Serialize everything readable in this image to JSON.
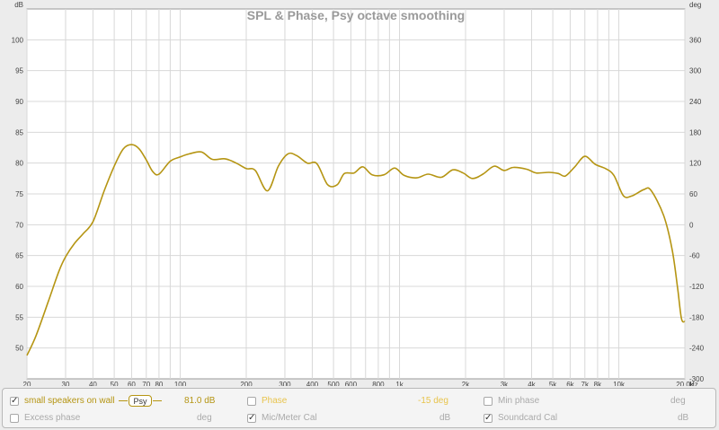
{
  "chart_data": {
    "type": "line",
    "title": "SPL & Phase, Psy octave smoothing",
    "left_unit": "dB",
    "right_unit": "deg",
    "x_unit": "Hz",
    "x_scale": "log",
    "xlim": [
      20,
      20000
    ],
    "ylim": [
      45,
      105
    ],
    "y2lim": [
      -300,
      420
    ],
    "y_ticks": [
      50,
      55,
      60,
      65,
      70,
      75,
      80,
      85,
      90,
      95,
      100
    ],
    "y2_ticks": [
      -300,
      -240,
      -180,
      -120,
      -60,
      0,
      60,
      120,
      180,
      240,
      300,
      360
    ],
    "x_ticks": [
      {
        "v": 20,
        "label": "20"
      },
      {
        "v": 30,
        "label": "30"
      },
      {
        "v": 40,
        "label": "40"
      },
      {
        "v": 50,
        "label": "50"
      },
      {
        "v": 60,
        "label": "60"
      },
      {
        "v": 70,
        "label": "70"
      },
      {
        "v": 80,
        "label": "80"
      },
      {
        "v": 100,
        "label": "100"
      },
      {
        "v": 200,
        "label": "200"
      },
      {
        "v": 300,
        "label": "300"
      },
      {
        "v": 400,
        "label": "400"
      },
      {
        "v": 500,
        "label": "500"
      },
      {
        "v": 600,
        "label": "600"
      },
      {
        "v": 800,
        "label": "800"
      },
      {
        "v": 1000,
        "label": "1k"
      },
      {
        "v": 2000,
        "label": "2k"
      },
      {
        "v": 3000,
        "label": "3k"
      },
      {
        "v": 4000,
        "label": "4k"
      },
      {
        "v": 5000,
        "label": "5k"
      },
      {
        "v": 6000,
        "label": "6k"
      },
      {
        "v": 7000,
        "label": "7k"
      },
      {
        "v": 8000,
        "label": "8k"
      },
      {
        "v": 10000,
        "label": "10k"
      },
      {
        "v": 20000,
        "label": "20.0k"
      }
    ],
    "x_minor": [
      90,
      700,
      900,
      9000
    ],
    "series": [
      {
        "name": "small speakers on wall",
        "color": "#b59513",
        "points": [
          [
            20,
            48.8
          ],
          [
            22,
            52
          ],
          [
            25,
            57.5
          ],
          [
            28,
            62.5
          ],
          [
            30,
            64.8
          ],
          [
            33,
            67
          ],
          [
            36,
            68.5
          ],
          [
            40,
            70.5
          ],
          [
            45,
            75.5
          ],
          [
            50,
            79.5
          ],
          [
            55,
            82.3
          ],
          [
            60,
            83
          ],
          [
            65,
            82.3
          ],
          [
            70,
            80.5
          ],
          [
            75,
            78.6
          ],
          [
            80,
            78.2
          ],
          [
            90,
            80.3
          ],
          [
            100,
            81
          ],
          [
            110,
            81.5
          ],
          [
            125,
            81.8
          ],
          [
            140,
            80.6
          ],
          [
            160,
            80.7
          ],
          [
            180,
            80
          ],
          [
            200,
            79.1
          ],
          [
            220,
            78.8
          ],
          [
            250,
            75.5
          ],
          [
            280,
            79.5
          ],
          [
            310,
            81.5
          ],
          [
            340,
            81.2
          ],
          [
            380,
            80
          ],
          [
            420,
            79.9
          ],
          [
            470,
            76.5
          ],
          [
            520,
            76.5
          ],
          [
            560,
            78.3
          ],
          [
            620,
            78.4
          ],
          [
            680,
            79.4
          ],
          [
            750,
            78.1
          ],
          [
            850,
            78.1
          ],
          [
            950,
            79.2
          ],
          [
            1050,
            78
          ],
          [
            1200,
            77.6
          ],
          [
            1350,
            78.2
          ],
          [
            1550,
            77.7
          ],
          [
            1750,
            78.9
          ],
          [
            1950,
            78.4
          ],
          [
            2150,
            77.5
          ],
          [
            2400,
            78.2
          ],
          [
            2700,
            79.5
          ],
          [
            3000,
            78.8
          ],
          [
            3300,
            79.3
          ],
          [
            3800,
            79
          ],
          [
            4200,
            78.4
          ],
          [
            4800,
            78.5
          ],
          [
            5300,
            78.3
          ],
          [
            5700,
            77.9
          ],
          [
            6300,
            79.4
          ],
          [
            7000,
            81.1
          ],
          [
            7800,
            79.8
          ],
          [
            8700,
            79.1
          ],
          [
            9500,
            78
          ],
          [
            10500,
            74.7
          ],
          [
            11500,
            74.7
          ],
          [
            13000,
            75.7
          ],
          [
            14000,
            75.6
          ],
          [
            16000,
            71.5
          ],
          [
            17500,
            66
          ],
          [
            18500,
            60
          ],
          [
            19300,
            54.8
          ],
          [
            20000,
            54.3
          ]
        ]
      }
    ]
  },
  "legend": {
    "row1": {
      "trace_name": "small speakers on wall",
      "smoothing": "Psy",
      "level": "81.0 dB",
      "phase_label": "Phase",
      "phase_value": "-15 deg",
      "min_phase_label": "Min phase",
      "min_phase_unit": "deg"
    },
    "row2": {
      "excess_phase_label": "Excess phase",
      "excess_phase_unit": "deg",
      "mic_cal_label": "Mic/Meter Cal",
      "mic_cal_unit": "dB",
      "soundcard_cal_label": "Soundcard Cal",
      "soundcard_cal_unit": "dB"
    }
  }
}
